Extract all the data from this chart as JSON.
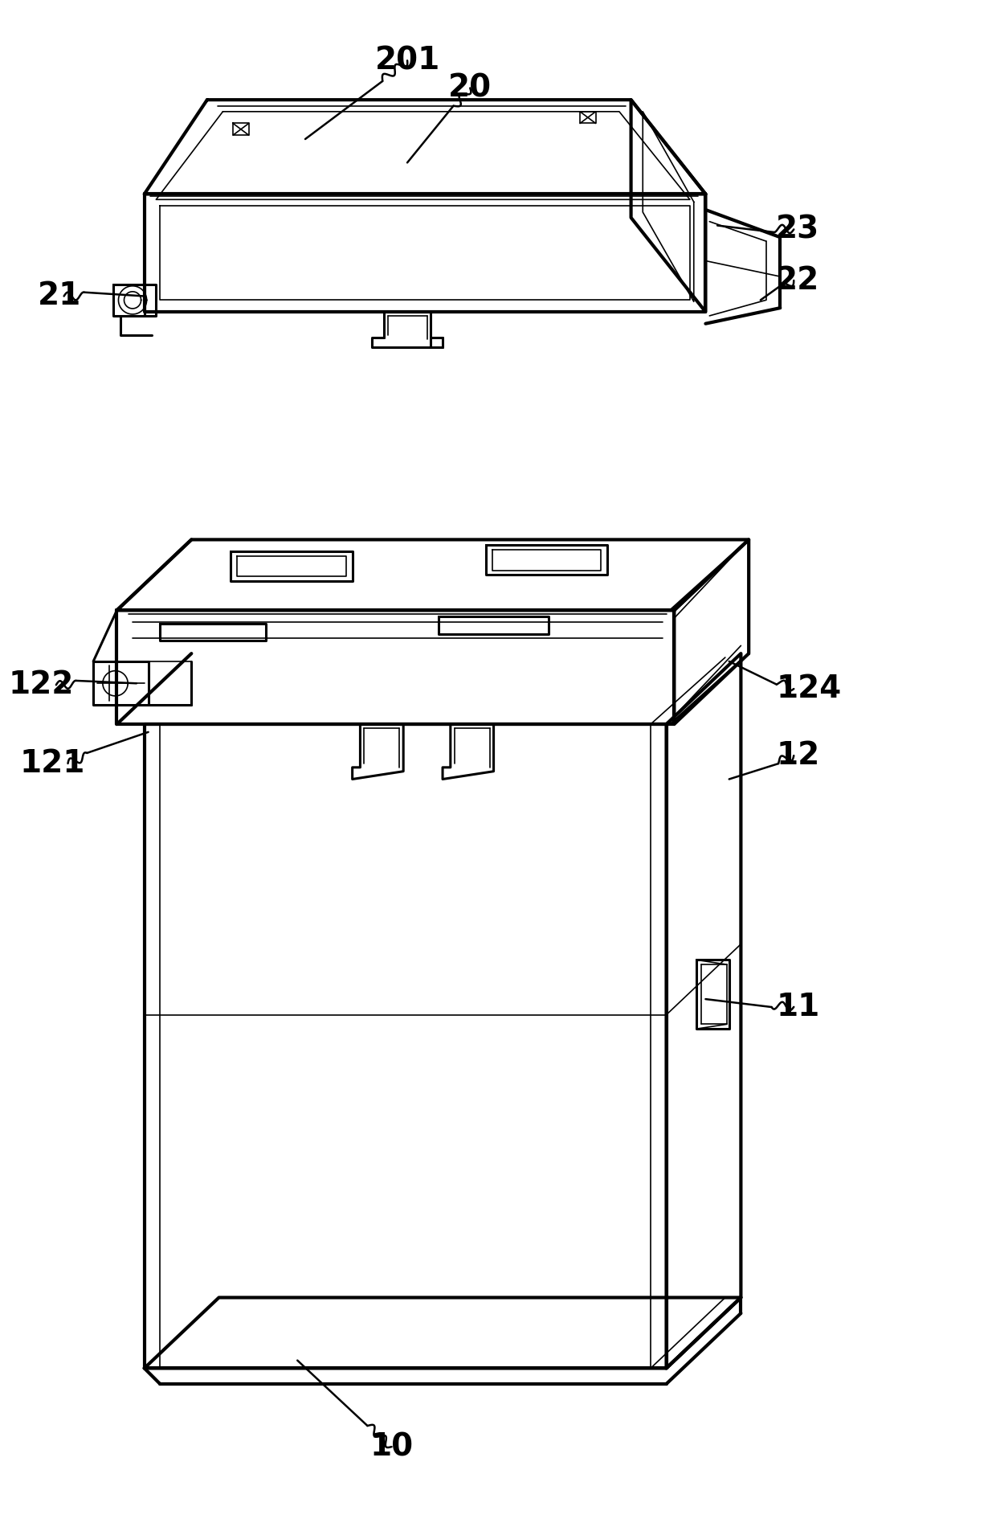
{
  "background_color": "#ffffff",
  "figsize": [
    12.4,
    18.95
  ],
  "dpi": 100
}
